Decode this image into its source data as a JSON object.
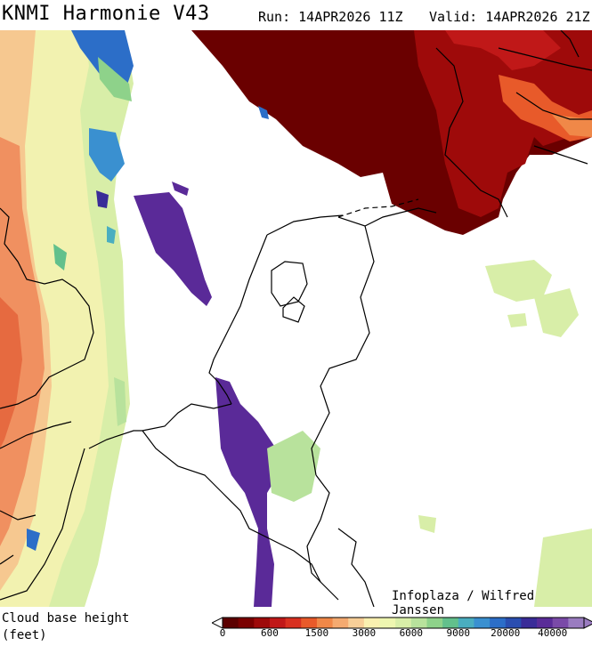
{
  "header": {
    "title": "KNMI Harmonie V43",
    "run": "Run: 14APR2026 11Z",
    "valid": "Valid: 14APR2026 21Z"
  },
  "credit": "Infoplaza / Wilfred Janssen",
  "legend": {
    "label_line1": "Cloud base height",
    "label_line2": "(feet)",
    "ticks": [
      "0",
      "600",
      "1500",
      "3000",
      "6000",
      "9000",
      "20000",
      "40000"
    ],
    "colors": [
      "#5c0000",
      "#7a0000",
      "#9e0a0a",
      "#c01818",
      "#d83020",
      "#e85a2a",
      "#f08848",
      "#f4aa70",
      "#f8cf98",
      "#faf0b0",
      "#eef6b0",
      "#d8eea8",
      "#b8e29c",
      "#8ed28a",
      "#62c08c",
      "#4aaec0",
      "#3a90d0",
      "#2c6ec8",
      "#2a4eb0",
      "#3a2c98",
      "#5a2c98",
      "#7a4aa8",
      "#9a7cc0"
    ]
  },
  "palette": {
    "dark_red": "#6a0000",
    "red": "#b01010",
    "orange": "#f08050",
    "light_orange": "#f8b888",
    "yellow": "#f8f4b8",
    "light_green": "#d4eca4",
    "green": "#a0d88c",
    "teal": "#60c0a0",
    "blue": "#3a8ed0",
    "purple": "#5a2a98"
  }
}
